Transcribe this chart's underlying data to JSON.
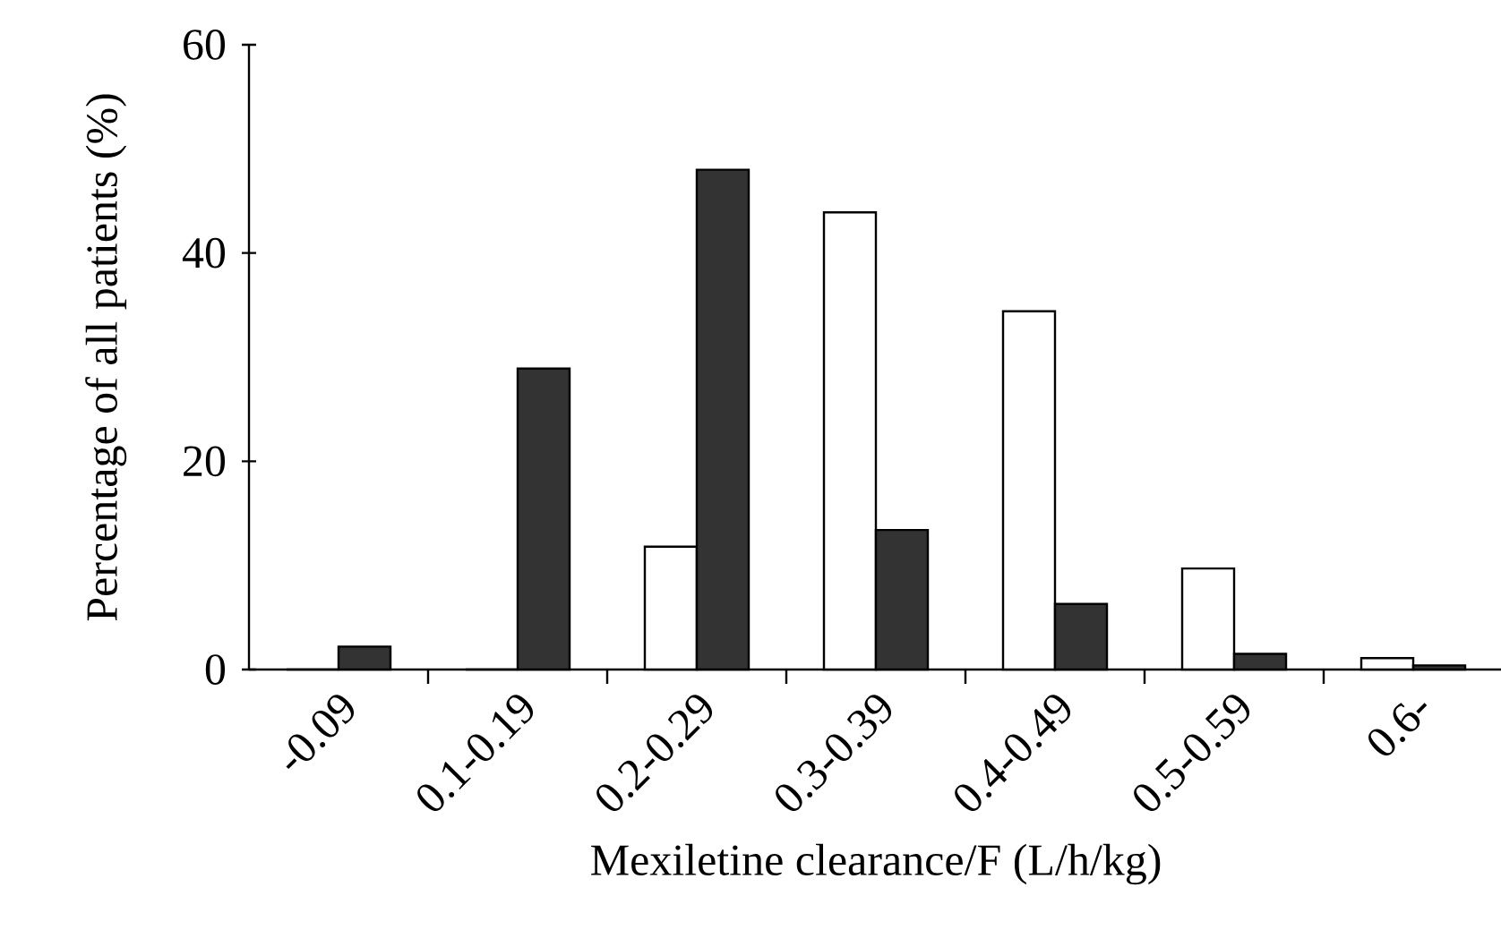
{
  "chart_data": {
    "type": "bar",
    "xlabel": "Mexiletine clearance/F (L/h/kg)",
    "ylabel": "Percentage of all patients (%)",
    "categories": [
      "-0.09",
      "0.1-0.19",
      "0.2-0.29",
      "0.3-0.39",
      "0.4-0.49",
      "0.5-0.59",
      "0.6-"
    ],
    "series": [
      {
        "color": "#ffffff",
        "values": [
          0,
          0,
          11.8,
          43.9,
          34.4,
          9.7,
          1.1
        ]
      },
      {
        "color": "#333333",
        "values": [
          2.2,
          28.9,
          48,
          13.4,
          6.3,
          1.5,
          0.4
        ]
      }
    ],
    "ylim": [
      0,
      60
    ],
    "yticks": [
      0,
      20,
      40,
      60
    ],
    "grid": false
  }
}
